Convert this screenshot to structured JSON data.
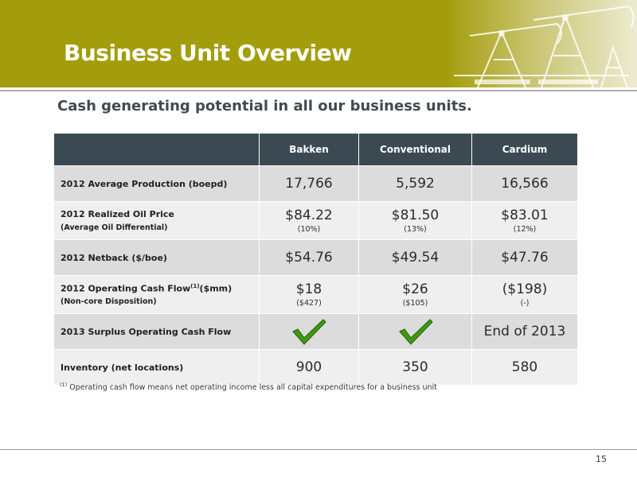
{
  "slide": {
    "title": "Business Unit Overview",
    "subtitle": "Cash generating potential in all our business units.",
    "page_number": "15"
  },
  "table": {
    "columns": [
      "",
      "Bakken",
      "Conventional",
      "Cardium"
    ],
    "rows": [
      {
        "label": "2012 Average Production (boepd)",
        "values": [
          "17,766",
          "5,592",
          "16,566"
        ]
      },
      {
        "label": "2012 Realized Oil Price",
        "sublabel": "(Average Oil Differential)",
        "values": [
          "$84.22",
          "$81.50",
          "$83.01"
        ],
        "notes": [
          "(10%)",
          "(13%)",
          "(12%)"
        ]
      },
      {
        "label": "2012 Netback ($/boe)",
        "values": [
          "$54.76",
          "$49.54",
          "$47.76"
        ]
      },
      {
        "label_pre": "2012 Operating Cash Flow",
        "label_sup": "(1)",
        "label_post": "($mm)",
        "sublabel": "(Non-core Disposition)",
        "values": [
          "$18",
          "$26",
          "($198)"
        ],
        "notes": [
          "($427)",
          "($105)",
          "(-)"
        ]
      },
      {
        "label": "2013 Surplus Operating Cash Flow",
        "values": [
          "",
          "",
          "End of 2013"
        ],
        "icons": [
          "checkmark-icon",
          "checkmark-icon",
          ""
        ]
      },
      {
        "label": "Inventory (net locations)",
        "values": [
          "900",
          "350",
          "580"
        ]
      }
    ]
  },
  "footnote": {
    "marker": "(1)",
    "text": "Operating cash flow means net operating income less all capital expenditures for a business unit"
  },
  "colors": {
    "header": "#a39d0b",
    "table_header": "#3b4a52",
    "row_dark": "#dcdcdc",
    "row_light": "#efefef",
    "checkmark": "#3f9a10"
  }
}
